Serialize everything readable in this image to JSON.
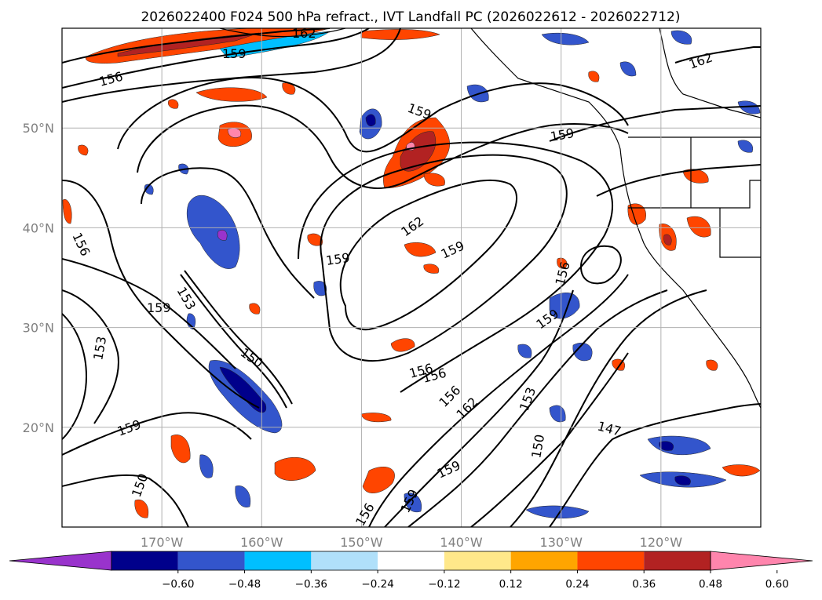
{
  "title": "2026022400 F024 500 hPa refract., IVT Landfall PC (2026022612 - 2026022712)",
  "map": {
    "lat_ticks": [
      {
        "lat": 50,
        "label": "50°N"
      },
      {
        "lat": 40,
        "label": "40°N"
      },
      {
        "lat": 30,
        "label": "30°N"
      },
      {
        "lat": 20,
        "label": "20°N"
      }
    ],
    "lon_ticks": [
      {
        "lon": -170,
        "label": "170°W"
      },
      {
        "lon": -160,
        "label": "160°W"
      },
      {
        "lon": -150,
        "label": "150°W"
      },
      {
        "lon": -140,
        "label": "140°W"
      },
      {
        "lon": -130,
        "label": "130°W"
      },
      {
        "lon": -120,
        "label": "120°W"
      }
    ],
    "contour_labels": [
      "162",
      "159",
      "156",
      "159",
      "162",
      "159",
      "159",
      "156",
      "162",
      "159",
      "159",
      "156",
      "159",
      "153",
      "159",
      "156",
      "153",
      "150",
      "156",
      "156",
      "162",
      "153",
      "147",
      "159",
      "150",
      "150",
      "159",
      "156"
    ]
  },
  "colorbar": {
    "tick_labels": [
      "−0.60",
      "−0.48",
      "−0.36",
      "−0.24",
      "−0.12",
      "0.12",
      "0.24",
      "0.36",
      "0.48",
      "0.60"
    ],
    "colors": [
      "#9933cc",
      "#00008b",
      "#3355cc",
      "#00bfff",
      "#b0e0fa",
      "#ffffff",
      "#ffe88a",
      "#ffa500",
      "#ff4500",
      "#b22222",
      "#ff85ad"
    ]
  }
}
